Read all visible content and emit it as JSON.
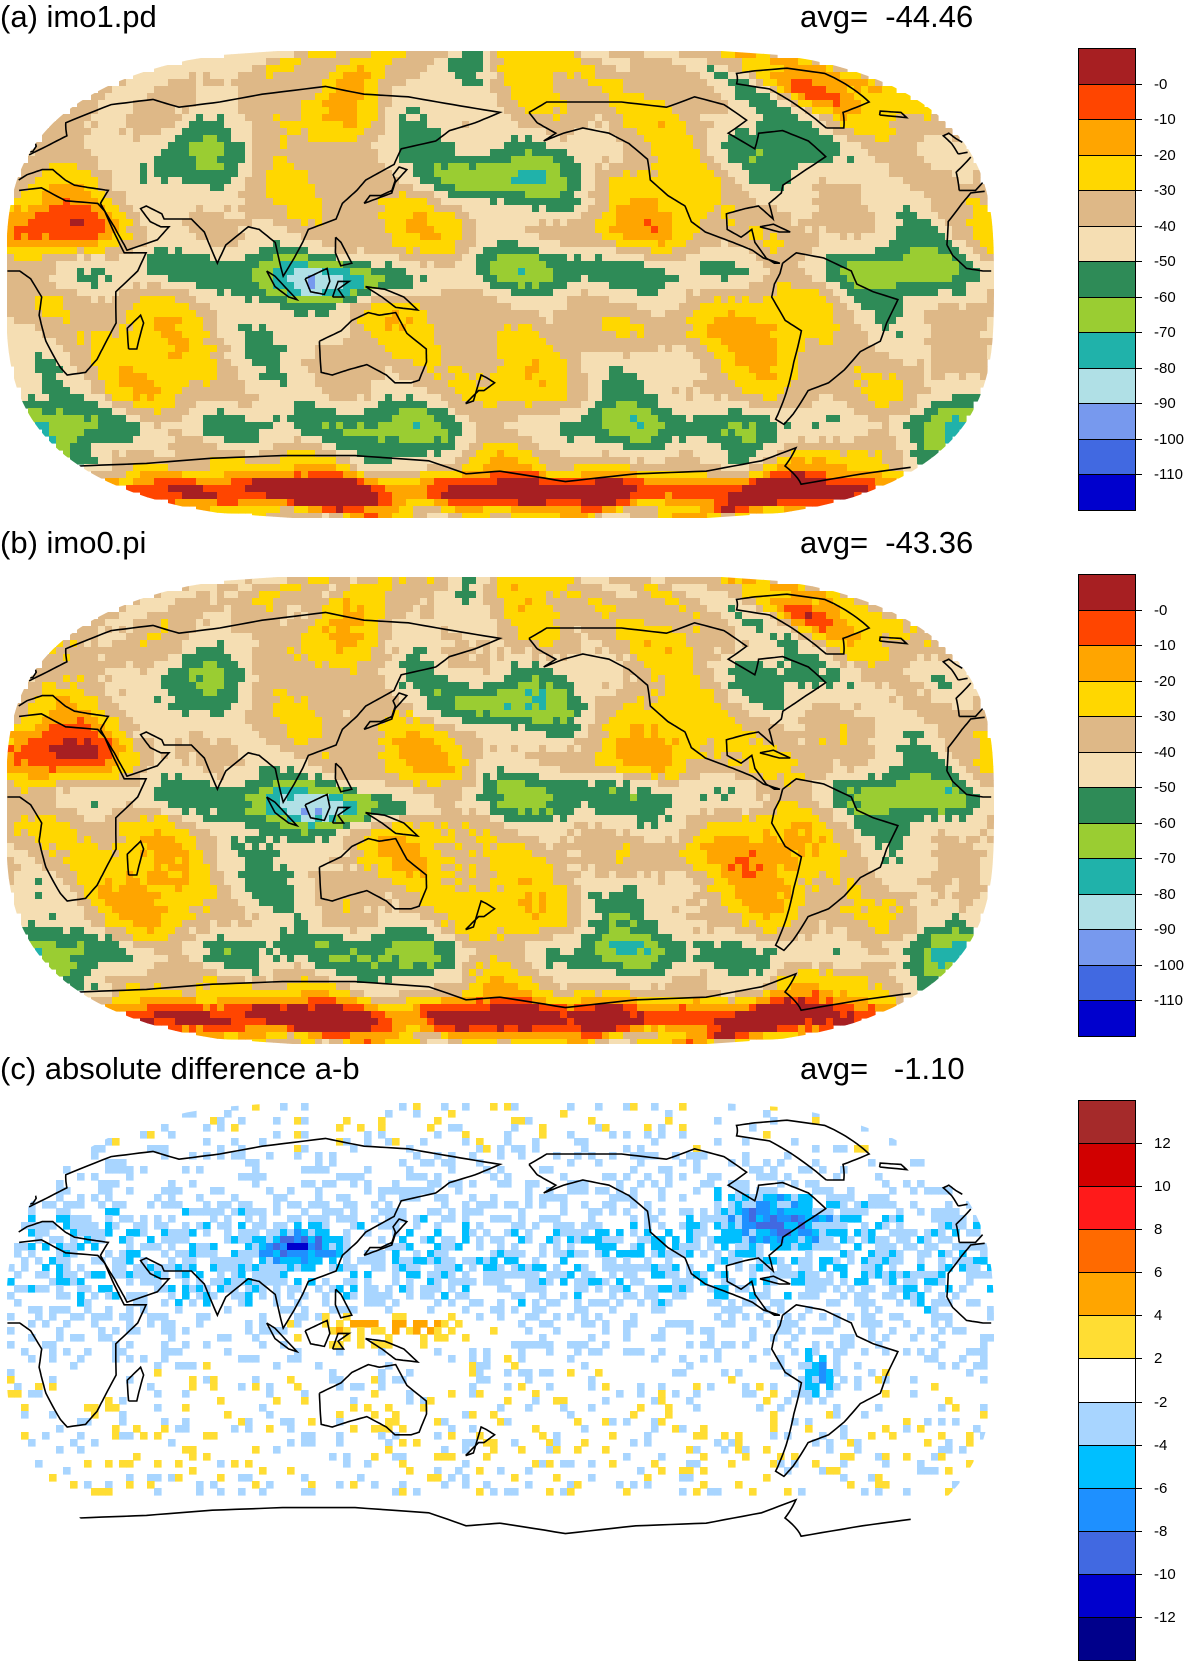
{
  "panels": [
    {
      "id": "a",
      "title": "(a) imo1.pd",
      "avg_text": "avg=  -44.46",
      "avg": -44.46,
      "field": "a",
      "colorbar": {
        "colors": [
          "#a71f22",
          "#ff4500",
          "#ffa500",
          "#ffd700",
          "#deb887",
          "#f5deb3",
          "#2e8b57",
          "#9acd32",
          "#20b2aa",
          "#b0e0e6",
          "#7799ee",
          "#4169e1",
          "#0000cd"
        ],
        "labels": [
          "-0",
          "-10",
          "-20",
          "-30",
          "-40",
          "-50",
          "-60",
          "-70",
          "-80",
          "-90",
          "-100",
          "-110"
        ]
      }
    },
    {
      "id": "b",
      "title": "(b) imo0.pi",
      "avg_text": "avg=  -43.36",
      "avg": -43.36,
      "field": "b",
      "colorbar": {
        "colors": [
          "#a71f22",
          "#ff4500",
          "#ffa500",
          "#ffd700",
          "#deb887",
          "#f5deb3",
          "#2e8b57",
          "#9acd32",
          "#20b2aa",
          "#b0e0e6",
          "#7799ee",
          "#4169e1",
          "#0000cd"
        ],
        "labels": [
          "-0",
          "-10",
          "-20",
          "-30",
          "-40",
          "-50",
          "-60",
          "-70",
          "-80",
          "-90",
          "-100",
          "-110"
        ]
      }
    },
    {
      "id": "c",
      "title": "(c) absolute difference a-b",
      "avg_text": "avg=   -1.10",
      "avg": -1.1,
      "field": "diff",
      "colorbar": {
        "colors": [
          "#a52a2a",
          "#d10000",
          "#ff1a1a",
          "#ff6a00",
          "#ffa500",
          "#ffdd33",
          "#ffffff",
          "#a8d5ff",
          "#00bfff",
          "#1e90ff",
          "#4169e1",
          "#0000cd",
          "#00008b"
        ],
        "labels": [
          "12",
          "10",
          "8",
          "6",
          "4",
          "2",
          "-2",
          "-4",
          "-6",
          "-8",
          "-10",
          "-12"
        ]
      }
    }
  ]
}
